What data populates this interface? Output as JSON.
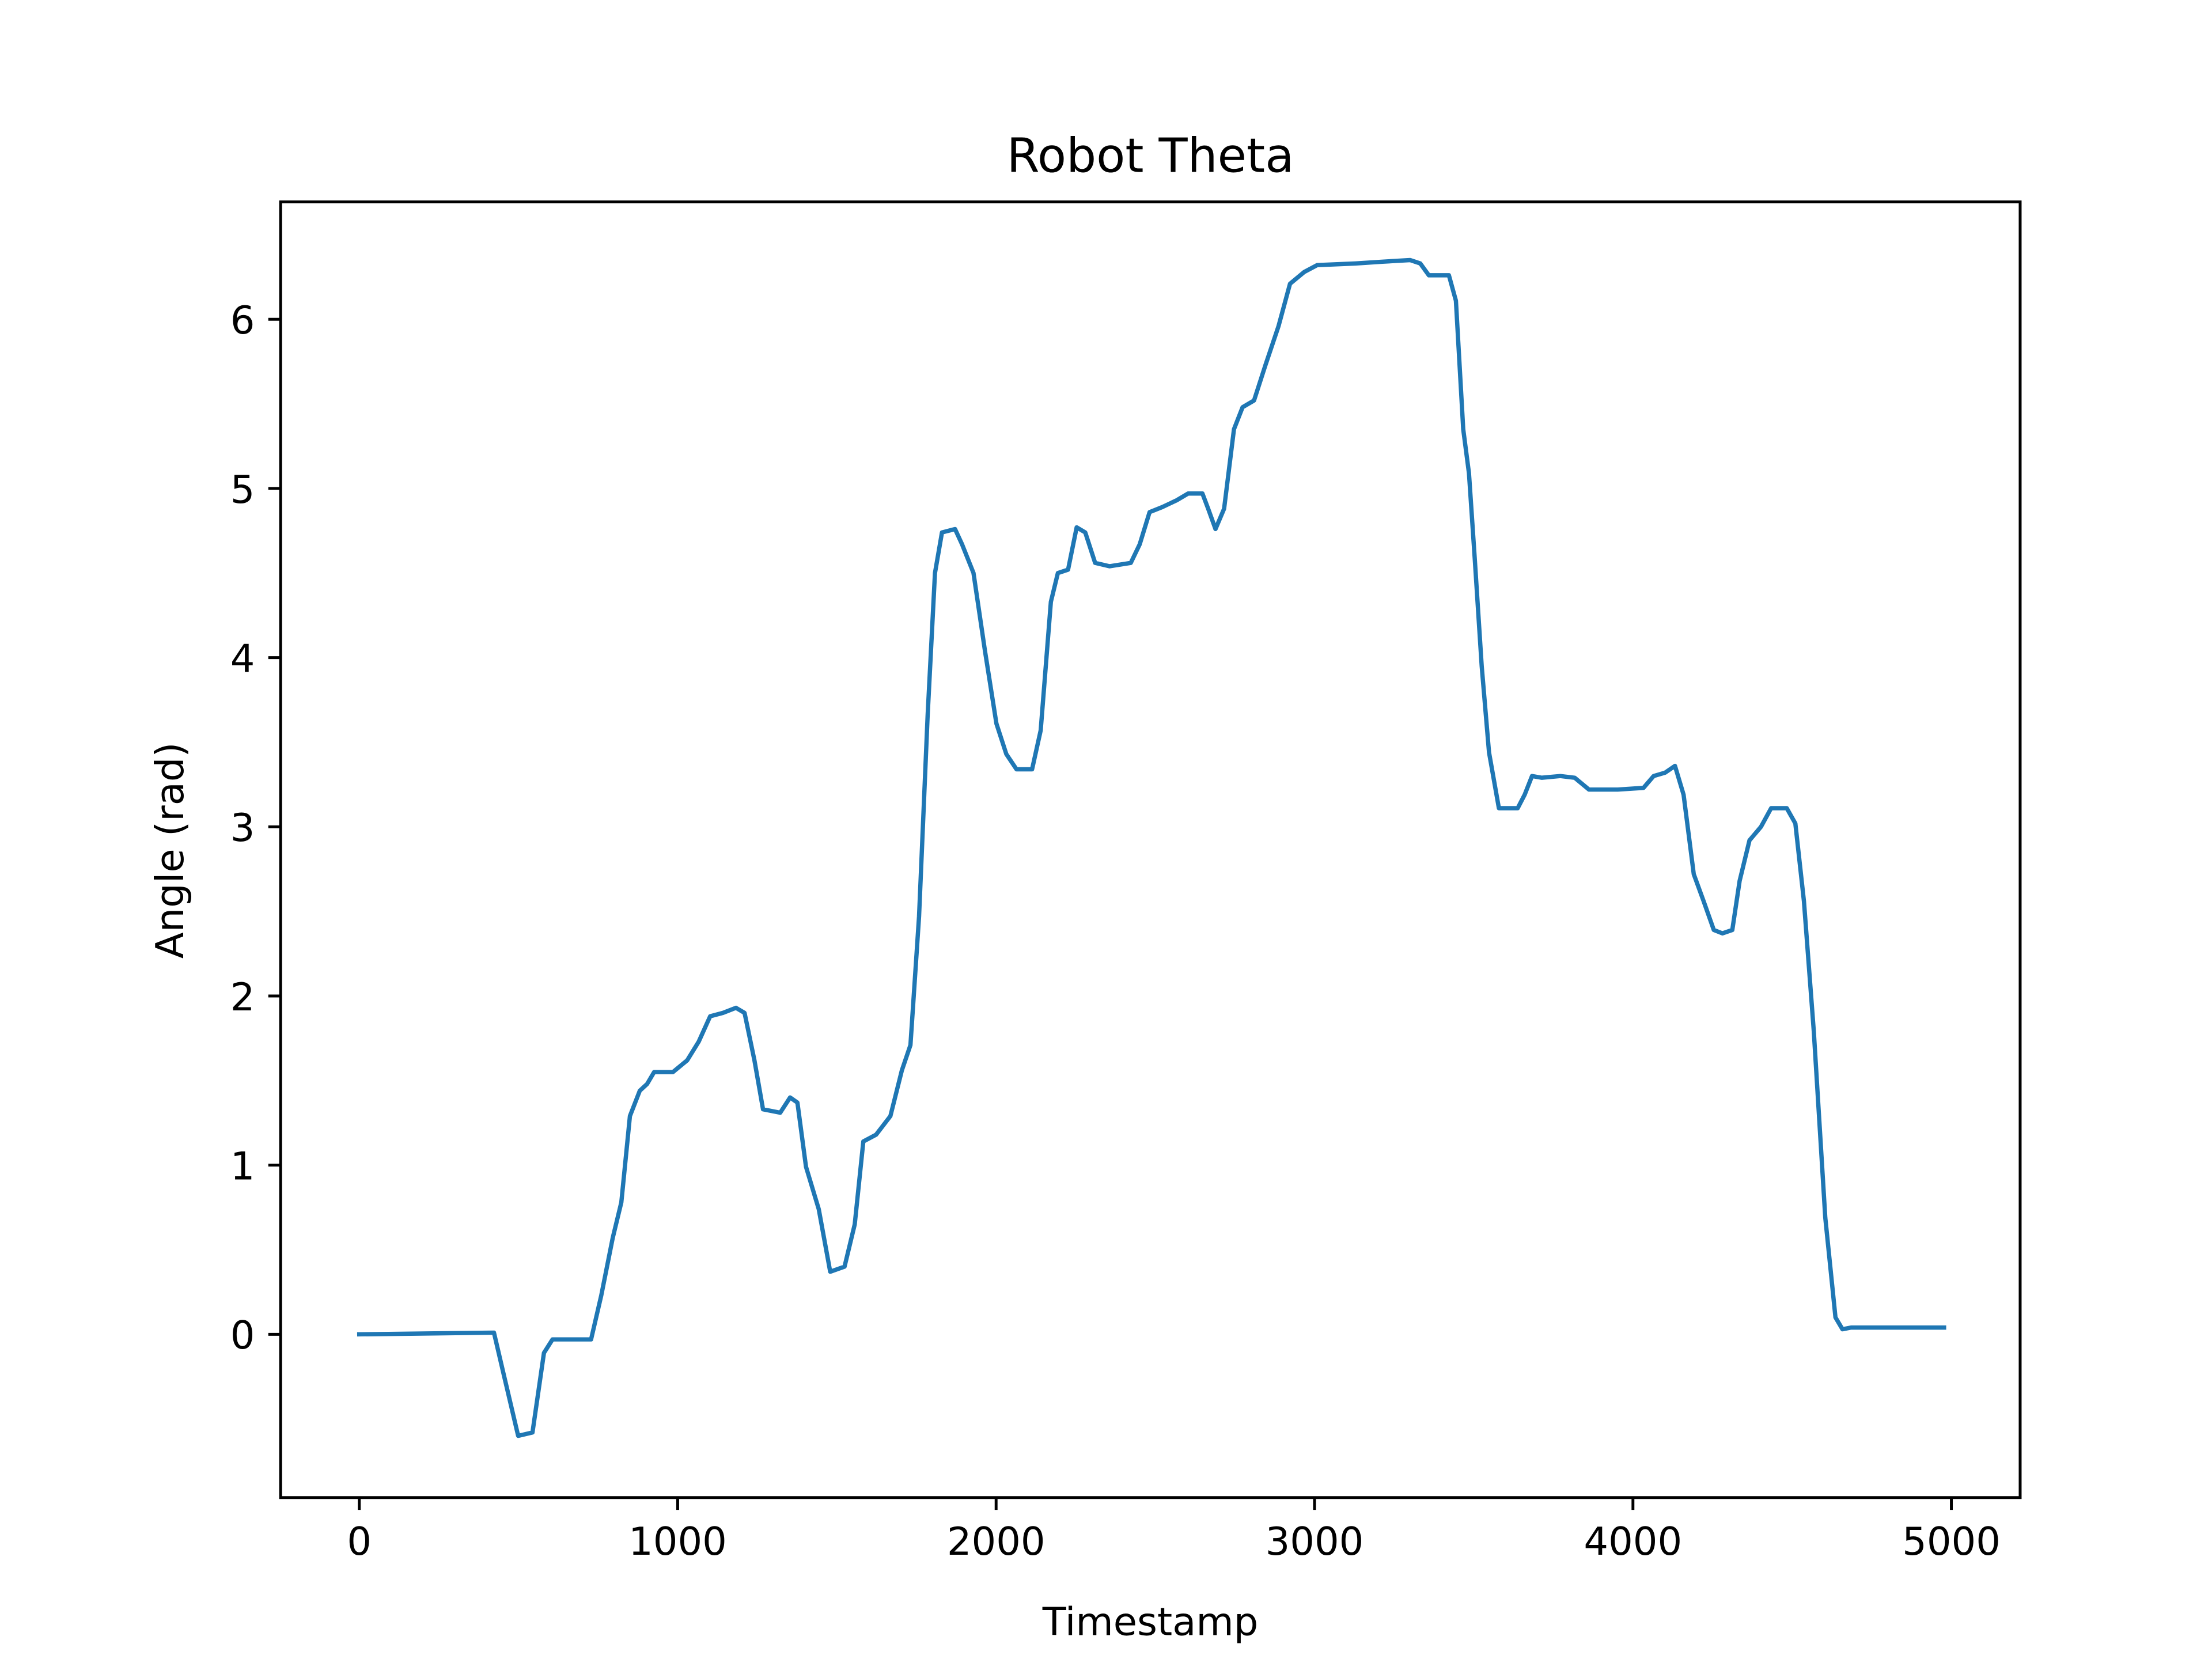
{
  "chart_data": {
    "type": "line",
    "title": "Robot Theta",
    "x_label": "Timestamp",
    "y_label": "Angle (rad)",
    "x": [
      0,
      423,
      454,
      499,
      544,
      580,
      607,
      728,
      760,
      796,
      823,
      850,
      881,
      904,
      926,
      985,
      1030,
      1066,
      1102,
      1142,
      1183,
      1210,
      1241,
      1268,
      1322,
      1353,
      1376,
      1403,
      1443,
      1479,
      1524,
      1556,
      1583,
      1623,
      1668,
      1704,
      1731,
      1758,
      1785,
      1808,
      1830,
      1871,
      1893,
      1929,
      1965,
      2001,
      2032,
      2064,
      2113,
      2140,
      2172,
      2194,
      2226,
      2253,
      2280,
      2311,
      2356,
      2423,
      2451,
      2482,
      2522,
      2567,
      2603,
      2648,
      2666,
      2689,
      2716,
      2747,
      2774,
      2810,
      2846,
      2887,
      2923,
      2968,
      3008,
      3129,
      3210,
      3300,
      3332,
      3359,
      3422,
      3444,
      3467,
      3485,
      3503,
      3525,
      3548,
      3579,
      3638,
      3660,
      3683,
      3714,
      3772,
      3817,
      3862,
      3952,
      4033,
      4065,
      4101,
      4132,
      4159,
      4191,
      4222,
      4254,
      4281,
      4312,
      4335,
      4366,
      4402,
      4434,
      4483,
      4510,
      4537,
      4568,
      4604,
      4636,
      4658,
      4685,
      4977
    ],
    "series": [
      {
        "name": "theta",
        "color": "#1f77b4",
        "values": [
          0,
          0.01,
          -0.24,
          -0.6,
          -0.58,
          -0.11,
          -0.03,
          -0.03,
          0.23,
          0.57,
          0.78,
          1.29,
          1.44,
          1.48,
          1.55,
          1.55,
          1.62,
          1.73,
          1.88,
          1.9,
          1.93,
          1.9,
          1.62,
          1.33,
          1.31,
          1.4,
          1.37,
          0.99,
          0.74,
          0.37,
          0.4,
          0.65,
          1.14,
          1.18,
          1.29,
          1.56,
          1.71,
          2.47,
          3.66,
          4.5,
          4.74,
          4.76,
          4.67,
          4.5,
          4.04,
          3.61,
          3.43,
          3.34,
          3.34,
          3.57,
          4.33,
          4.5,
          4.52,
          4.77,
          4.74,
          4.56,
          4.54,
          4.56,
          4.67,
          4.86,
          4.89,
          4.93,
          4.97,
          4.97,
          4.88,
          4.76,
          4.88,
          5.35,
          5.48,
          5.52,
          5.73,
          5.96,
          6.21,
          6.28,
          6.32,
          6.33,
          6.34,
          6.35,
          6.33,
          6.26,
          6.26,
          6.11,
          5.35,
          5.09,
          4.59,
          3.95,
          3.44,
          3.11,
          3.11,
          3.19,
          3.3,
          3.29,
          3.3,
          3.29,
          3.22,
          3.22,
          3.23,
          3.3,
          3.32,
          3.36,
          3.19,
          2.72,
          2.56,
          2.39,
          2.37,
          2.39,
          2.68,
          2.92,
          3.0,
          3.11,
          3.11,
          3.02,
          2.56,
          1.79,
          0.69,
          0.1,
          0.03,
          0.04,
          0.04
        ]
      }
    ],
    "xlim": [
      -247,
      5216
    ],
    "ylim": [
      -0.965,
      6.694
    ],
    "xticks": [
      0,
      1000,
      2000,
      3000,
      4000,
      5000
    ],
    "yticks": [
      0,
      1,
      2,
      3,
      4,
      5,
      6
    ]
  }
}
